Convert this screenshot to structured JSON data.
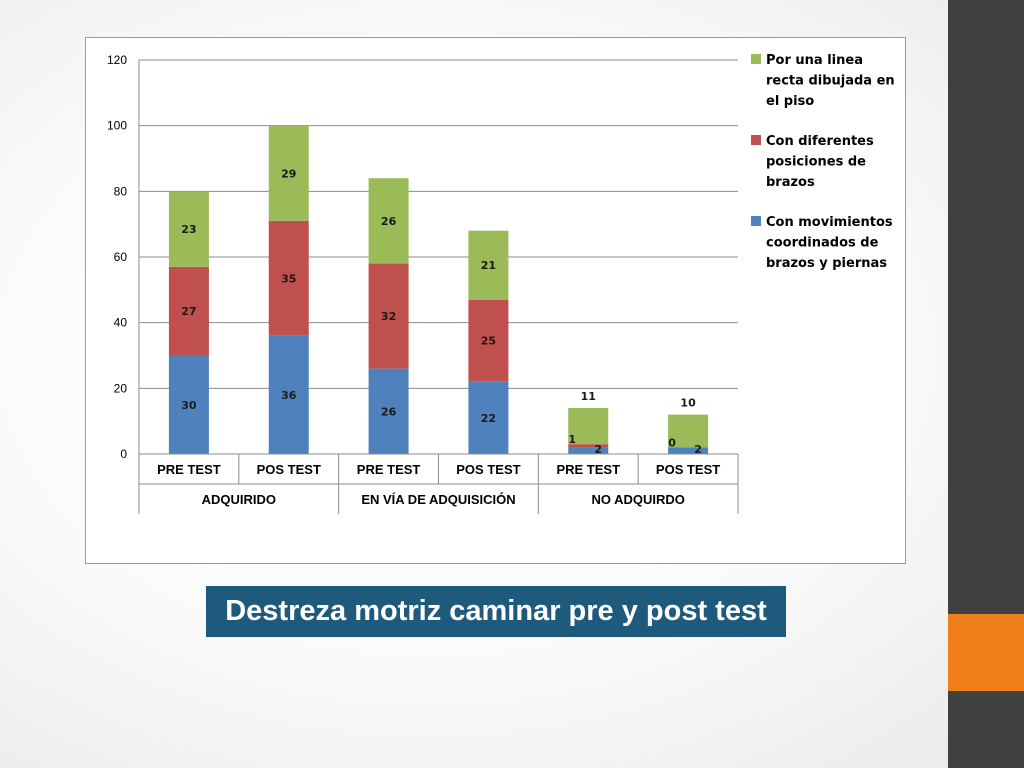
{
  "slide": {
    "title": "Destreza motriz caminar pre y post test",
    "colors": {
      "sidebar": "#404040",
      "accent": "#ef7f1a",
      "title_bg": "#1f5a7d"
    }
  },
  "chart_data": {
    "type": "bar",
    "stacked": true,
    "title": "",
    "xlabel": "",
    "ylabel": "",
    "ylim": [
      0,
      120
    ],
    "yticks": [
      0,
      20,
      40,
      60,
      80,
      100,
      120
    ],
    "grid": true,
    "legend_position": "right",
    "categories": [
      "PRE TEST",
      "POS TEST",
      "PRE TEST",
      "POS TEST",
      "PRE TEST",
      "POS TEST"
    ],
    "groups": [
      {
        "label": "ADQUIRIDO",
        "span": 2
      },
      {
        "label": "EN VÍA DE ADQUISICIÓN",
        "span": 2
      },
      {
        "label": "NO ADQUIRDO",
        "span": 2
      }
    ],
    "series": [
      {
        "name": "Con movimientos coordinados de brazos y piernas",
        "color": "#4f81bd",
        "values": [
          30,
          36,
          26,
          22,
          2,
          2
        ]
      },
      {
        "name": "Con diferentes posiciones de brazos",
        "color": "#c0504d",
        "values": [
          27,
          35,
          32,
          25,
          1,
          0
        ]
      },
      {
        "name": "Por una linea recta dibujada en el piso",
        "color": "#9bbb59",
        "values": [
          23,
          29,
          26,
          21,
          11,
          10
        ]
      }
    ],
    "legend_order": [
      2,
      1,
      0
    ],
    "legend_lines": [
      [
        "Por una linea",
        "recta dibujada en",
        "el piso"
      ],
      [
        "Con diferentes",
        "posiciones de",
        "brazos"
      ],
      [
        "Con movimientos",
        "coordinados de",
        "brazos y piernas"
      ]
    ]
  }
}
